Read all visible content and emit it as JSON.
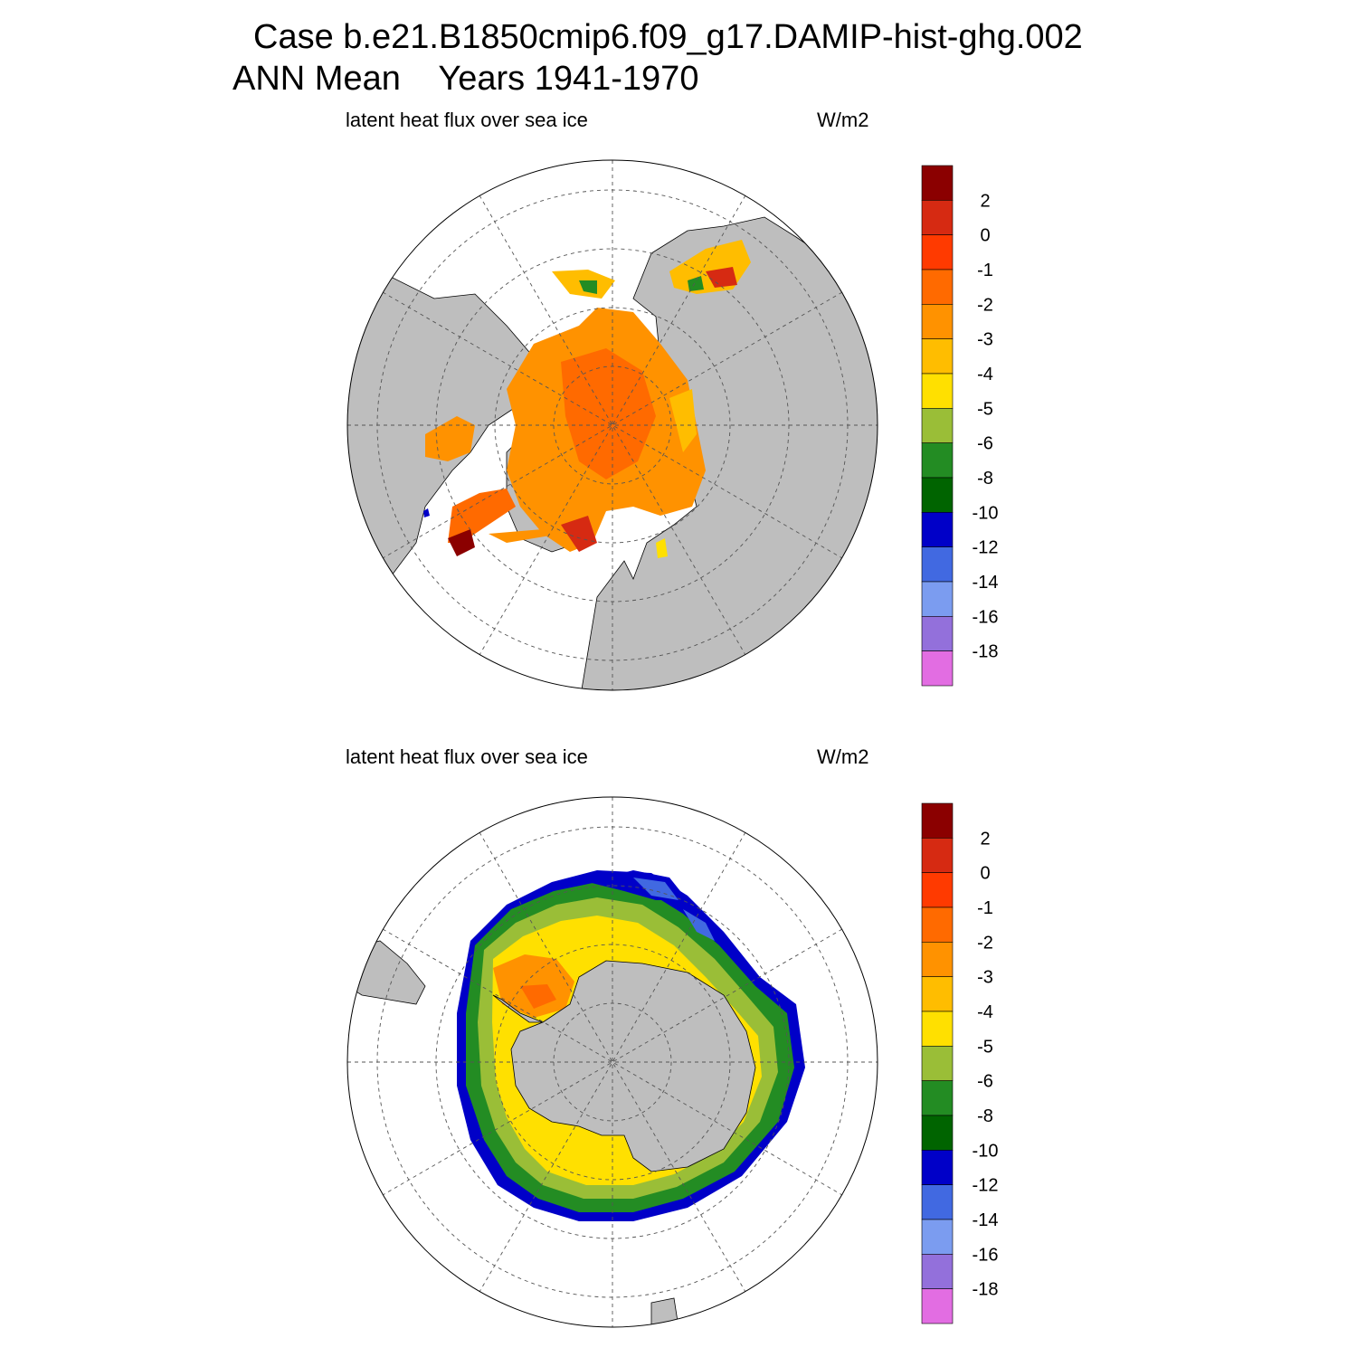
{
  "header": {
    "title_line1": "Case b.e21.B1850cmip6.f09_g17.DAMIP-hist-ghg.002",
    "title_line2": "ANN Mean    Years 1941-1970"
  },
  "panels": [
    {
      "id": "north",
      "hemisphere": "north",
      "variable_label": "latent heat flux over sea ice",
      "units": "W/m2"
    },
    {
      "id": "south",
      "hemisphere": "south",
      "variable_label": "latent heat flux over sea ice",
      "units": "W/m2"
    }
  ],
  "colorbar": {
    "tick_labels": [
      "2",
      "0",
      "-1",
      "-2",
      "-3",
      "-4",
      "-5",
      "-6",
      "-8",
      "-10",
      "-12",
      "-14",
      "-16",
      "-18"
    ],
    "colors": [
      "#8b0000",
      "#d62a12",
      "#ff3a00",
      "#ff6a00",
      "#ff9200",
      "#ffbd00",
      "#ffe000",
      "#9abe37",
      "#238c23",
      "#006400",
      "#0000c8",
      "#4169e1",
      "#7b9cf0",
      "#9370db",
      "#e26de2"
    ]
  },
  "colors": {
    "land": "#bebebe",
    "grid": "#555555",
    "background": "#ffffff"
  }
}
